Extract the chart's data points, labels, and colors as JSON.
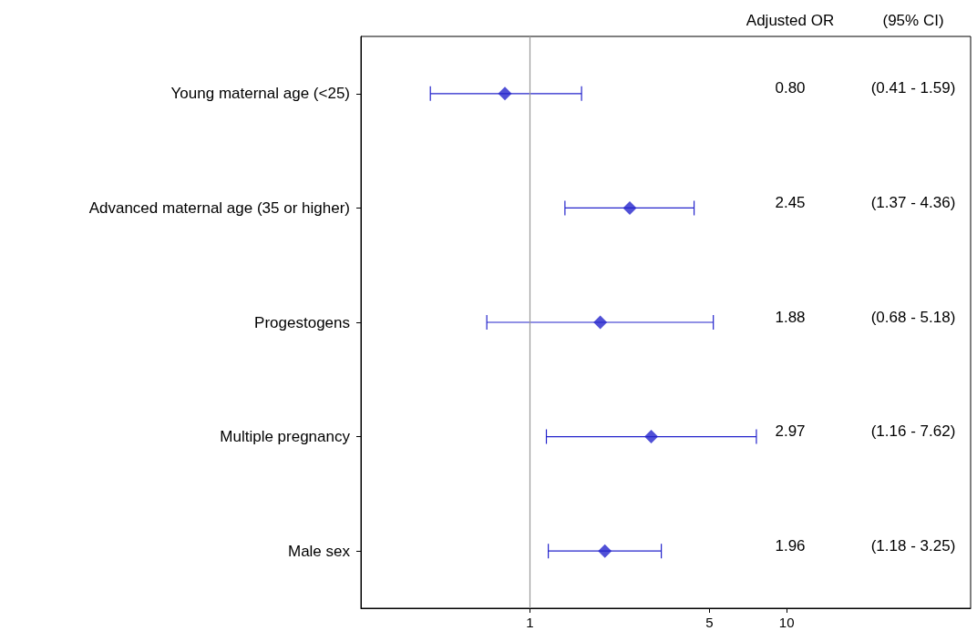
{
  "chart_data": {
    "type": "scatter",
    "orientation": "horizontal",
    "log": "x",
    "marker": "diamond",
    "grid": false,
    "color": "#2424cc",
    "categories": [
      "Young maternal age (<25)",
      "Advanced maternal age (35 or higher)",
      "Progestogens",
      "Multiple pregnancy",
      "Male sex"
    ],
    "values": [
      0.8,
      2.45,
      1.88,
      2.97,
      1.96
    ],
    "errors": [
      [
        0.41,
        1.59
      ],
      [
        1.37,
        4.36
      ],
      [
        0.68,
        5.18
      ],
      [
        1.16,
        7.62
      ],
      [
        1.18,
        3.25
      ]
    ],
    "xlim": [
      0.22,
      52
    ],
    "xticks": [
      1,
      5,
      10
    ],
    "ref_lines": [
      {
        "axis": "x",
        "value": 1,
        "color": "#999999"
      }
    ],
    "annotations": [
      "Adjusted OR",
      "(95% CI)",
      "0.80",
      "(0.41 - 1.59)",
      "2.45",
      "(1.37 - 4.36)",
      "1.88",
      "(0.68 - 5.18)",
      "2.97",
      "(1.16 - 7.62)",
      "1.96",
      "(1.18 - 3.25)"
    ]
  }
}
